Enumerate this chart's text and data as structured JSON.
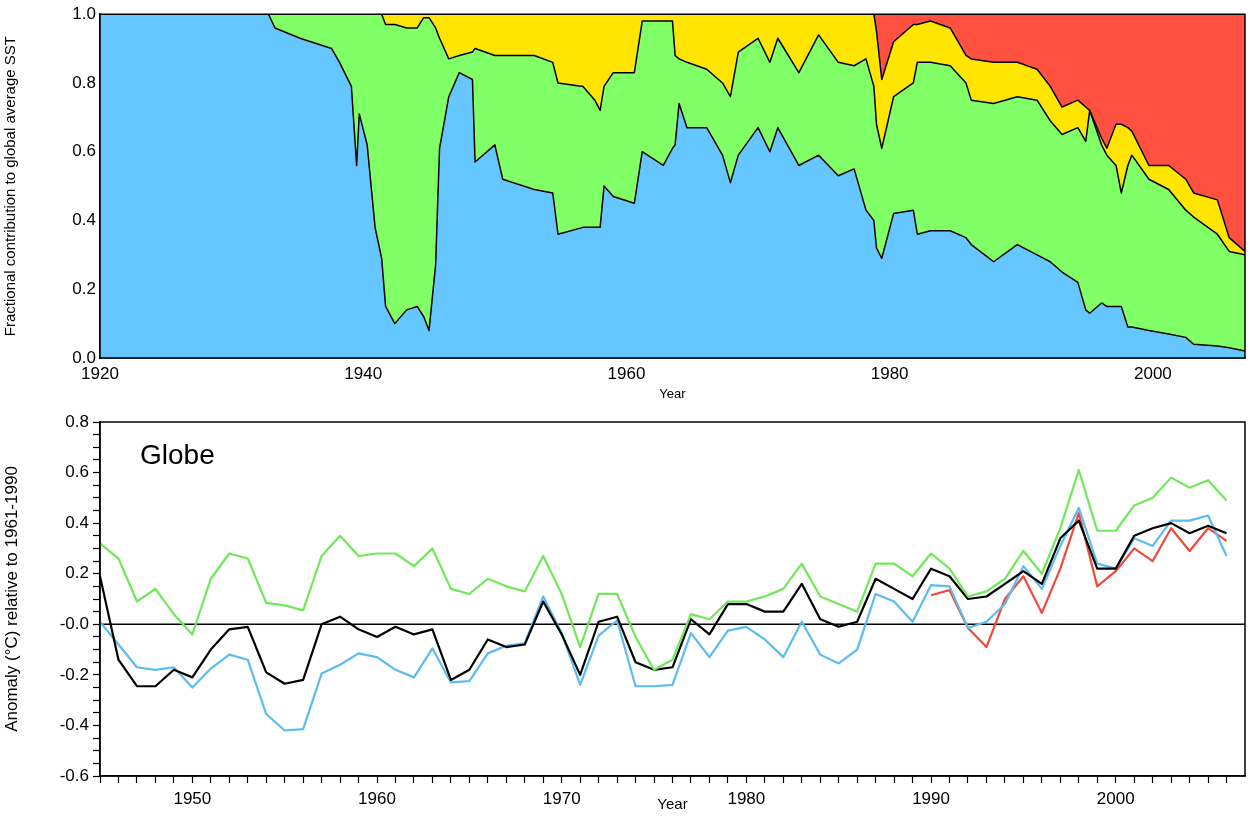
{
  "chart_data": [
    {
      "type": "area",
      "stacked": true,
      "xlabel": "Year",
      "ylabel": "Fractional contribution to global average SST",
      "marker": "none",
      "x": [
        1920,
        1932.8,
        1933.3,
        1935.2,
        1937.6,
        1938.2,
        1939.1,
        1939.5,
        1939.7,
        1940.3,
        1940.9,
        1941.4,
        1941.7,
        1942.4,
        1943.3,
        1944.1,
        1944.6,
        1945.0,
        1945.5,
        1945.8,
        1946.5,
        1947.3,
        1948.3,
        1948.5,
        1950.0,
        1950.6,
        1953.0,
        1954.4,
        1954.8,
        1956.7,
        1957.6,
        1958.0,
        1958.3,
        1959.0,
        1960.6,
        1961.2,
        1962.8,
        1963.5,
        1963.7,
        1964.0,
        1964.6,
        1966.1,
        1967.3,
        1967.9,
        1968.5,
        1970.0,
        1970.9,
        1971.5,
        1973.1,
        1974.6,
        1976.1,
        1977.3,
        1978.2,
        1978.8,
        1979.0,
        1979.4,
        1980.3,
        1981.8,
        1982.1,
        1983.1,
        1984.6,
        1985.8,
        1986.2,
        1987.9,
        1989.7,
        1991.2,
        1992.2,
        1993.1,
        1994.3,
        1994.9,
        1995.2,
        1996.1,
        1996.5,
        1997.2,
        1997.6,
        1998.1,
        1998.4,
        1999.7,
        2001.2,
        2002.5,
        2003.1,
        2004.9,
        2005.8,
        2007
      ],
      "series": [
        {
          "color": "#66c6ff",
          "values": [
            1,
            1,
            0.96,
            0.93,
            0.9,
            0.86,
            0.79,
            0.56,
            0.71,
            0.62,
            0.38,
            0.29,
            0.15,
            0.1,
            0.14,
            0.15,
            0.12,
            0.08,
            0.27,
            0.61,
            0.76,
            0.83,
            0.81,
            0.57,
            0.62,
            0.52,
            0.49,
            0.48,
            0.36,
            0.38,
            0.38,
            0.38,
            0.5,
            0.47,
            0.45,
            0.6,
            0.56,
            0.61,
            0.62,
            0.74,
            0.67,
            0.67,
            0.59,
            0.51,
            0.59,
            0.67,
            0.6,
            0.67,
            0.56,
            0.59,
            0.53,
            0.55,
            0.43,
            0.4,
            0.32,
            0.29,
            0.42,
            0.43,
            0.36,
            0.37,
            0.37,
            0.35,
            0.33,
            0.28,
            0.33,
            0.3,
            0.28,
            0.25,
            0.22,
            0.14,
            0.13,
            0.16,
            0.15,
            0.15,
            0.15,
            0.09,
            0.09,
            0.08,
            0.07,
            0.06,
            0.04,
            0.035,
            0.03,
            0.02
          ]
        },
        {
          "color": "#80ff66",
          "values": [
            0,
            0,
            0.04,
            0.07,
            0.1,
            0.14,
            0.21,
            0.44,
            0.29,
            0.38,
            0.62,
            0.71,
            0.82,
            0.87,
            0.82,
            0.81,
            0.87,
            0.91,
            0.69,
            0.32,
            0.11,
            0.05,
            0.08,
            0.33,
            0.26,
            0.36,
            0.39,
            0.38,
            0.44,
            0.41,
            0.37,
            0.34,
            0.29,
            0.36,
            0.38,
            0.38,
            0.42,
            0.37,
            0.26,
            0.13,
            0.19,
            0.17,
            0.21,
            0.25,
            0.3,
            0.26,
            0.26,
            0.26,
            0.27,
            0.35,
            0.33,
            0.3,
            0.44,
            0.39,
            0.36,
            0.32,
            0.34,
            0.37,
            0.5,
            0.49,
            0.48,
            0.45,
            0.42,
            0.46,
            0.43,
            0.45,
            0.41,
            0.4,
            0.45,
            0.49,
            0.59,
            0.46,
            0.44,
            0.41,
            0.33,
            0.47,
            0.5,
            0.44,
            0.42,
            0.37,
            0.37,
            0.325,
            0.28,
            0.28
          ]
        },
        {
          "color": "#ffe500",
          "values": [
            0,
            0,
            0,
            0,
            0,
            0,
            0,
            0,
            0,
            0,
            0,
            0,
            0.03,
            0.03,
            0.04,
            0.04,
            0.01,
            0.01,
            0.04,
            0.07,
            0.13,
            0.12,
            0.11,
            0.1,
            0.12,
            0.12,
            0.12,
            0.14,
            0.2,
            0.21,
            0.25,
            0.28,
            0.21,
            0.17,
            0.17,
            0.02,
            0.02,
            0.02,
            0.12,
            0.13,
            0.14,
            0.16,
            0.2,
            0.24,
            0.11,
            0.07,
            0.14,
            0.07,
            0.17,
            0.06,
            0.14,
            0.15,
            0.13,
            0.21,
            0.27,
            0.2,
            0.16,
            0.17,
            0.11,
            0.12,
            0.11,
            0.08,
            0.12,
            0.12,
            0.1,
            0.09,
            0.1,
            0.08,
            0.08,
            0.1,
            0,
            0.02,
            0.02,
            0.12,
            0.2,
            0.11,
            0.07,
            0.04,
            0.07,
            0.09,
            0.07,
            0.1,
            0.04,
            0.01
          ]
        },
        {
          "color": "#ff5040",
          "values": [
            0,
            0,
            0,
            0,
            0,
            0,
            0,
            0,
            0,
            0,
            0,
            0,
            0,
            0,
            0,
            0,
            0,
            0,
            0,
            0,
            0,
            0,
            0,
            0,
            0,
            0,
            0,
            0,
            0,
            0,
            0,
            0,
            0,
            0,
            0,
            0,
            0,
            0,
            0,
            0,
            0,
            0,
            0,
            0,
            0,
            0,
            0,
            0,
            0,
            0,
            0,
            0,
            0,
            0,
            0.05,
            0.19,
            0.08,
            0.03,
            0.03,
            0.02,
            0.04,
            0.12,
            0.13,
            0.14,
            0.14,
            0.16,
            0.21,
            0.27,
            0.25,
            0.27,
            0.28,
            0.36,
            0.39,
            0.32,
            0.32,
            0.33,
            0.34,
            0.44,
            0.44,
            0.48,
            0.52,
            0.54,
            0.65,
            0.69
          ]
        }
      ],
      "xlim": [
        1920,
        2007
      ],
      "xticks": [
        1920,
        1940,
        1960,
        1980,
        2000
      ],
      "ylim": [
        0,
        1
      ],
      "yticks": [
        {
          "value": 0,
          "label": "0.0"
        },
        0.2,
        0.4,
        0.6,
        0.8,
        {
          "value": 1,
          "label": "1.0"
        }
      ]
    },
    {
      "type": "line",
      "xlabel": "Year",
      "ylabel": "Anomaly (°C) relative to 1961-1990",
      "annotations": [
        "Globe"
      ],
      "marker": "none",
      "x": [
        1945,
        1946,
        1947,
        1948,
        1949,
        1950,
        1951,
        1952,
        1953,
        1954,
        1955,
        1956,
        1957,
        1958,
        1959,
        1960,
        1961,
        1962,
        1963,
        1964,
        1965,
        1966,
        1967,
        1968,
        1969,
        1970,
        1971,
        1972,
        1973,
        1974,
        1975,
        1976,
        1977,
        1978,
        1979,
        1980,
        1981,
        1982,
        1983,
        1984,
        1985,
        1986,
        1987,
        1988,
        1989,
        1990,
        1991,
        1992,
        1993,
        1994,
        1995,
        1996,
        1997,
        1998,
        1999,
        2000,
        2001,
        2002,
        2003,
        2004,
        2005,
        2006
      ],
      "series": [
        {
          "color": "#70e85a",
          "values": [
            0.32,
            0.26,
            0.09,
            0.14,
            0.04,
            -0.04,
            0.18,
            0.28,
            0.26,
            0.085,
            0.075,
            0.055,
            0.27,
            0.35,
            0.27,
            0.28,
            0.28,
            0.23,
            0.3,
            0.14,
            0.12,
            0.18,
            0.15,
            0.13,
            0.27,
            0.12,
            -0.09,
            0.12,
            0.12,
            -0.05,
            -0.18,
            -0.14,
            0.04,
            0.02,
            0.09,
            0.09,
            0.11,
            0.14,
            0.24,
            0.11,
            0.08,
            0.05,
            0.24,
            0.24,
            0.19,
            0.28,
            0.22,
            0.11,
            0.13,
            0.18,
            0.29,
            0.2,
            0.38,
            0.61,
            0.37,
            0.37,
            0.47,
            0.5,
            0.58,
            0.54,
            0.57,
            0.49
          ]
        },
        {
          "color": "#000000",
          "values": [
            0.19,
            -0.14,
            -0.245,
            -0.245,
            -0.18,
            -0.21,
            -0.1,
            -0.02,
            -0.01,
            -0.19,
            -0.235,
            -0.22,
            0.0,
            0.03,
            -0.02,
            -0.05,
            -0.01,
            -0.04,
            -0.02,
            -0.22,
            -0.18,
            -0.06,
            -0.09,
            -0.08,
            0.09,
            -0.04,
            -0.2,
            0.01,
            0.03,
            -0.15,
            -0.18,
            -0.17,
            0.02,
            -0.04,
            0.08,
            0.08,
            0.05,
            0.05,
            0.16,
            0.02,
            -0.01,
            0.01,
            0.18,
            0.14,
            0.1,
            0.22,
            0.19,
            0.1,
            0.11,
            0.16,
            0.21,
            0.16,
            0.34,
            0.41,
            0.22,
            0.22,
            0.35,
            0.38,
            0.4,
            0.36,
            0.39,
            0.36
          ]
        },
        {
          "color": "#5cbcf0",
          "values": [
            0.01,
            -0.08,
            -0.17,
            -0.18,
            -0.17,
            -0.25,
            -0.175,
            -0.12,
            -0.14,
            -0.355,
            -0.42,
            -0.415,
            -0.195,
            -0.16,
            -0.115,
            -0.13,
            -0.18,
            -0.21,
            -0.095,
            -0.23,
            -0.225,
            -0.115,
            -0.085,
            -0.075,
            0.11,
            -0.035,
            -0.24,
            -0.045,
            0.015,
            -0.245,
            -0.245,
            -0.24,
            -0.035,
            -0.13,
            -0.025,
            -0.01,
            -0.06,
            -0.13,
            0.01,
            -0.12,
            -0.155,
            -0.1,
            0.12,
            0.09,
            0.01,
            0.155,
            0.15,
            -0.015,
            0.01,
            0.08,
            0.23,
            0.14,
            0.31,
            0.46,
            0.24,
            0.22,
            0.34,
            0.31,
            0.41,
            0.41,
            0.43,
            0.27
          ]
        },
        {
          "color": "#f04a3a",
          "values": [
            null,
            null,
            null,
            null,
            null,
            null,
            null,
            null,
            null,
            null,
            null,
            null,
            null,
            null,
            null,
            null,
            null,
            null,
            null,
            null,
            null,
            null,
            null,
            null,
            null,
            null,
            null,
            null,
            null,
            null,
            null,
            null,
            null,
            null,
            null,
            null,
            null,
            null,
            null,
            null,
            null,
            null,
            null,
            null,
            null,
            0.115,
            0.135,
            -0.015,
            -0.09,
            0.1,
            0.19,
            0.045,
            0.22,
            0.44,
            0.15,
            0.21,
            0.3,
            0.25,
            0.38,
            0.29,
            0.38,
            0.33
          ]
        }
      ],
      "ref_lines": [
        {
          "axis": "y",
          "value": 0,
          "color": "#000000"
        }
      ],
      "xlim": [
        1945,
        2007
      ],
      "xticks": [
        {
          "value": 1945,
          "label": null
        },
        {
          "value": 1946,
          "label": null
        },
        {
          "value": 1947,
          "label": null
        },
        {
          "value": 1948,
          "label": null
        },
        {
          "value": 1949,
          "label": null
        },
        1950,
        {
          "value": 1951,
          "label": null
        },
        {
          "value": 1952,
          "label": null
        },
        {
          "value": 1953,
          "label": null
        },
        {
          "value": 1954,
          "label": null
        },
        {
          "value": 1955,
          "label": null
        },
        {
          "value": 1956,
          "label": null
        },
        {
          "value": 1957,
          "label": null
        },
        {
          "value": 1958,
          "label": null
        },
        {
          "value": 1959,
          "label": null
        },
        1960,
        {
          "value": 1961,
          "label": null
        },
        {
          "value": 1962,
          "label": null
        },
        {
          "value": 1963,
          "label": null
        },
        {
          "value": 1964,
          "label": null
        },
        {
          "value": 1965,
          "label": null
        },
        {
          "value": 1966,
          "label": null
        },
        {
          "value": 1967,
          "label": null
        },
        {
          "value": 1968,
          "label": null
        },
        {
          "value": 1969,
          "label": null
        },
        1970,
        {
          "value": 1971,
          "label": null
        },
        {
          "value": 1972,
          "label": null
        },
        {
          "value": 1973,
          "label": null
        },
        {
          "value": 1974,
          "label": null
        },
        {
          "value": 1975,
          "label": null
        },
        {
          "value": 1976,
          "label": null
        },
        {
          "value": 1977,
          "label": null
        },
        {
          "value": 1978,
          "label": null
        },
        {
          "value": 1979,
          "label": null
        },
        1980,
        {
          "value": 1981,
          "label": null
        },
        {
          "value": 1982,
          "label": null
        },
        {
          "value": 1983,
          "label": null
        },
        {
          "value": 1984,
          "label": null
        },
        {
          "value": 1985,
          "label": null
        },
        {
          "value": 1986,
          "label": null
        },
        {
          "value": 1987,
          "label": null
        },
        {
          "value": 1988,
          "label": null
        },
        {
          "value": 1989,
          "label": null
        },
        1990,
        {
          "value": 1991,
          "label": null
        },
        {
          "value": 1992,
          "label": null
        },
        {
          "value": 1993,
          "label": null
        },
        {
          "value": 1994,
          "label": null
        },
        {
          "value": 1995,
          "label": null
        },
        {
          "value": 1996,
          "label": null
        },
        {
          "value": 1997,
          "label": null
        },
        {
          "value": 1998,
          "label": null
        },
        {
          "value": 1999,
          "label": null
        },
        2000,
        {
          "value": 2001,
          "label": null
        },
        {
          "value": 2002,
          "label": null
        },
        {
          "value": 2003,
          "label": null
        },
        {
          "value": 2004,
          "label": null
        },
        {
          "value": 2005,
          "label": null
        },
        {
          "value": 2006,
          "label": null
        }
      ],
      "ylim": [
        -0.6,
        0.8
      ],
      "yticks": [
        -0.6,
        {
          "value": -0.55,
          "label": null
        },
        {
          "value": -0.5,
          "label": null
        },
        {
          "value": -0.45,
          "label": null
        },
        -0.4,
        {
          "value": -0.35,
          "label": null
        },
        {
          "value": -0.3,
          "label": null
        },
        {
          "value": -0.25,
          "label": null
        },
        -0.2,
        {
          "value": -0.15,
          "label": null
        },
        {
          "value": -0.1,
          "label": null
        },
        {
          "value": -0.05,
          "label": null
        },
        {
          "value": 0,
          "label": "-0.0"
        },
        {
          "value": 0.05,
          "label": null
        },
        {
          "value": 0.1,
          "label": null
        },
        {
          "value": 0.15,
          "label": null
        },
        0.2,
        {
          "value": 0.25,
          "label": null
        },
        {
          "value": 0.3,
          "label": null
        },
        {
          "value": 0.35,
          "label": null
        },
        0.4,
        {
          "value": 0.45,
          "label": null
        },
        {
          "value": 0.5,
          "label": null
        },
        {
          "value": 0.55,
          "label": null
        },
        0.6,
        {
          "value": 0.65,
          "label": null
        },
        {
          "value": 0.7,
          "label": null
        },
        {
          "value": 0.75,
          "label": null
        },
        0.8
      ]
    }
  ]
}
